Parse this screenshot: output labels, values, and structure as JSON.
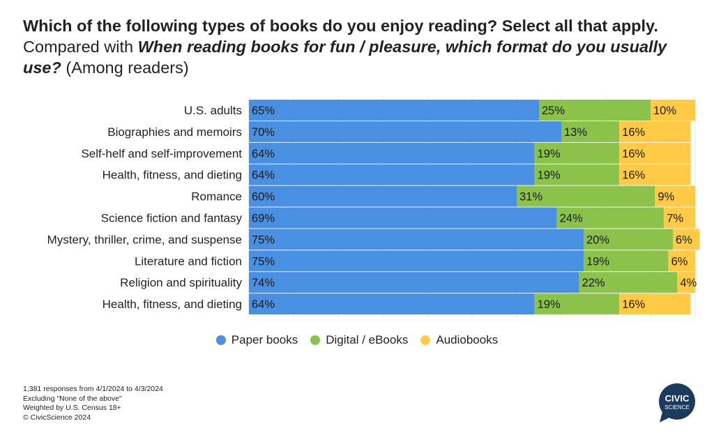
{
  "title": {
    "part1": "Which of the following types of books do you enjoy reading? Select all that apply.",
    "part2": "Compared with",
    "part3": "When reading books for fun / pleasure, which format do you usually use?",
    "part4": "(Among readers)"
  },
  "chart_data": {
    "type": "bar",
    "orientation": "horizontal",
    "stacked": true,
    "percent_stacked": true,
    "categories": [
      "U.S. adults",
      "Biographies and memoirs",
      "Self-helf and self-improvement",
      "Health, fitness, and dieting",
      "Romance",
      "Science fiction and fantasy",
      "Mystery, thriller, crime, and suspense",
      "Literature and fiction",
      "Religion and spirituality",
      "Health, fitness, and dieting"
    ],
    "series": [
      {
        "name": "Paper books",
        "color": "#4A90E2",
        "values": [
          65,
          70,
          64,
          64,
          60,
          69,
          75,
          75,
          74,
          64
        ],
        "labels": [
          "65%",
          "70%",
          "64%",
          "64%",
          "60%",
          "69%",
          "75%",
          "75%",
          "74%",
          "64%"
        ]
      },
      {
        "name": "Digital / eBooks",
        "color": "#8BC34A",
        "values": [
          25,
          13,
          19,
          19,
          31,
          24,
          20,
          19,
          22,
          19
        ],
        "labels": [
          "25%",
          "13%",
          "19%",
          "19%",
          "31%",
          "24%",
          "20%",
          "19%",
          "22%",
          "19%"
        ]
      },
      {
        "name": "Audiobooks",
        "color": "#FFCA45",
        "values": [
          10,
          16,
          16,
          16,
          9,
          7,
          6,
          6,
          4,
          16
        ],
        "labels": [
          "10%",
          "16%",
          "16%",
          "16%",
          "9%",
          "7%",
          "6%",
          "6%",
          "4%",
          "16%"
        ]
      }
    ],
    "xlim": [
      0,
      100
    ],
    "grid": true,
    "legend_position": "bottom"
  },
  "legend": [
    {
      "label": "Paper books",
      "color": "#4A90E2"
    },
    {
      "label": "Digital / eBooks",
      "color": "#8BC34A"
    },
    {
      "label": "Audiobooks",
      "color": "#FFCA45"
    }
  ],
  "footnotes": [
    "1,381 responses from 4/1/2024 to 4/3/2024",
    "Excluding \"None of the above\"",
    "Weighted by U.S. Census 18+",
    "© CivicScience 2024"
  ],
  "logo": {
    "line1": "CIVIC",
    "line2": "SCIENCE",
    "color": "#1B3A5C"
  }
}
